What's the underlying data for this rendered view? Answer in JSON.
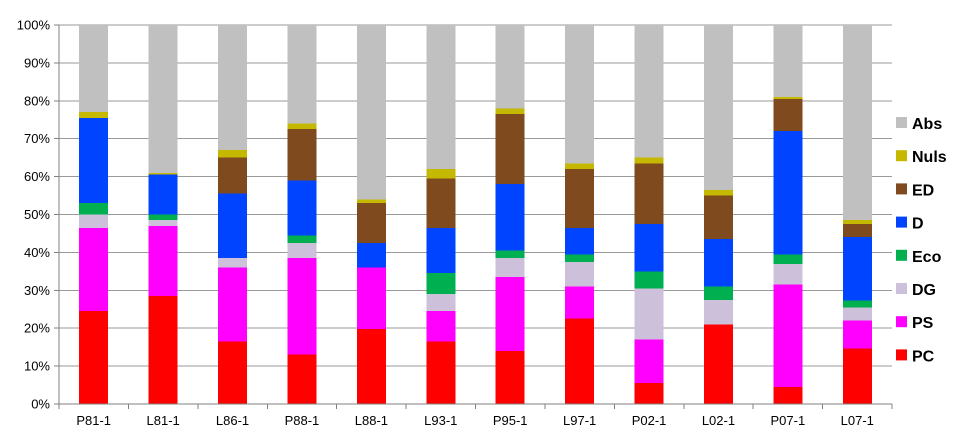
{
  "chart_data": {
    "type": "bar",
    "stacked": true,
    "percent_stacked": true,
    "title": "",
    "xlabel": "",
    "ylabel": "",
    "ylim": [
      0,
      100
    ],
    "yticks": [
      "0%",
      "10%",
      "20%",
      "30%",
      "40%",
      "50%",
      "60%",
      "70%",
      "80%",
      "90%",
      "100%"
    ],
    "grid": true,
    "legend_position": "right",
    "categories": [
      "P81-1",
      "L81-1",
      "L86-1",
      "P88-1",
      "L88-1",
      "L93-1",
      "P95-1",
      "L97-1",
      "P02-1",
      "L02-1",
      "P07-1",
      "L07-1"
    ],
    "series": [
      {
        "name": "PC",
        "color": "#ff0000",
        "values": [
          24.5,
          28.5,
          16.5,
          13,
          19.8,
          16.5,
          14,
          22.5,
          5.5,
          21,
          4.5,
          14.7
        ]
      },
      {
        "name": "PS",
        "color": "#ff00ff",
        "values": [
          22,
          18.5,
          19.5,
          25.5,
          16.2,
          8,
          19.5,
          8.5,
          11.5,
          0,
          27,
          7.3
        ]
      },
      {
        "name": "DG",
        "color": "#ccc0da",
        "values": [
          3.5,
          1.5,
          2.5,
          4,
          0,
          4.5,
          5,
          6.5,
          13.5,
          6.5,
          5.5,
          3.5
        ]
      },
      {
        "name": "Eco",
        "color": "#00b050",
        "values": [
          3,
          1.5,
          0,
          2,
          0,
          5.5,
          2,
          2,
          4.5,
          3.5,
          2.5,
          1.8
        ]
      },
      {
        "name": "D",
        "color": "#0044ff",
        "values": [
          22.5,
          10.5,
          17,
          14.5,
          6.5,
          12,
          17.5,
          7,
          12.5,
          12.5,
          32.5,
          16.7
        ]
      },
      {
        "name": "ED",
        "color": "#7f4a1e",
        "values": [
          0,
          0,
          9.5,
          13.5,
          10.5,
          13,
          18.5,
          15.5,
          16,
          11.5,
          8.5,
          3.5
        ]
      },
      {
        "name": "Nuls",
        "color": "#c4b800",
        "values": [
          1.5,
          0.5,
          2,
          1.5,
          1,
          2.5,
          1.5,
          1.5,
          1.5,
          1.5,
          0.5,
          1
        ]
      },
      {
        "name": "Abs",
        "color": "#c0c0c0",
        "values": [
          23,
          39,
          33,
          26,
          46,
          38,
          22,
          36.5,
          35,
          43.5,
          19,
          51.5
        ]
      }
    ]
  }
}
